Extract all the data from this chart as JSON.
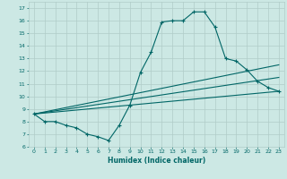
{
  "xlabel": "Humidex (Indice chaleur)",
  "ylabel": "",
  "background_color": "#cce8e4",
  "grid_color": "#b0ccc8",
  "line_color": "#006666",
  "xlim": [
    -0.5,
    23.5
  ],
  "ylim": [
    6,
    17.5
  ],
  "yticks": [
    6,
    7,
    8,
    9,
    10,
    11,
    12,
    13,
    14,
    15,
    16,
    17
  ],
  "xticks": [
    0,
    1,
    2,
    3,
    4,
    5,
    6,
    7,
    8,
    9,
    10,
    11,
    12,
    13,
    14,
    15,
    16,
    17,
    18,
    19,
    20,
    21,
    22,
    23
  ],
  "line1_x": [
    0,
    1,
    2,
    3,
    4,
    5,
    6,
    7,
    8,
    9,
    10,
    11,
    12,
    13,
    14,
    15,
    16,
    17,
    18,
    19,
    20,
    21,
    22,
    23
  ],
  "line1_y": [
    8.6,
    8.0,
    8.0,
    7.7,
    7.5,
    7.0,
    6.8,
    6.5,
    7.7,
    9.3,
    11.9,
    13.5,
    15.9,
    16.0,
    16.0,
    16.7,
    16.7,
    15.5,
    13.0,
    12.8,
    12.1,
    11.2,
    10.7,
    10.4
  ],
  "line2_x": [
    0,
    23
  ],
  "line2_y": [
    8.6,
    10.4
  ],
  "line3_x": [
    0,
    23
  ],
  "line3_y": [
    8.6,
    11.5
  ],
  "line4_x": [
    0,
    23
  ],
  "line4_y": [
    8.6,
    12.5
  ]
}
